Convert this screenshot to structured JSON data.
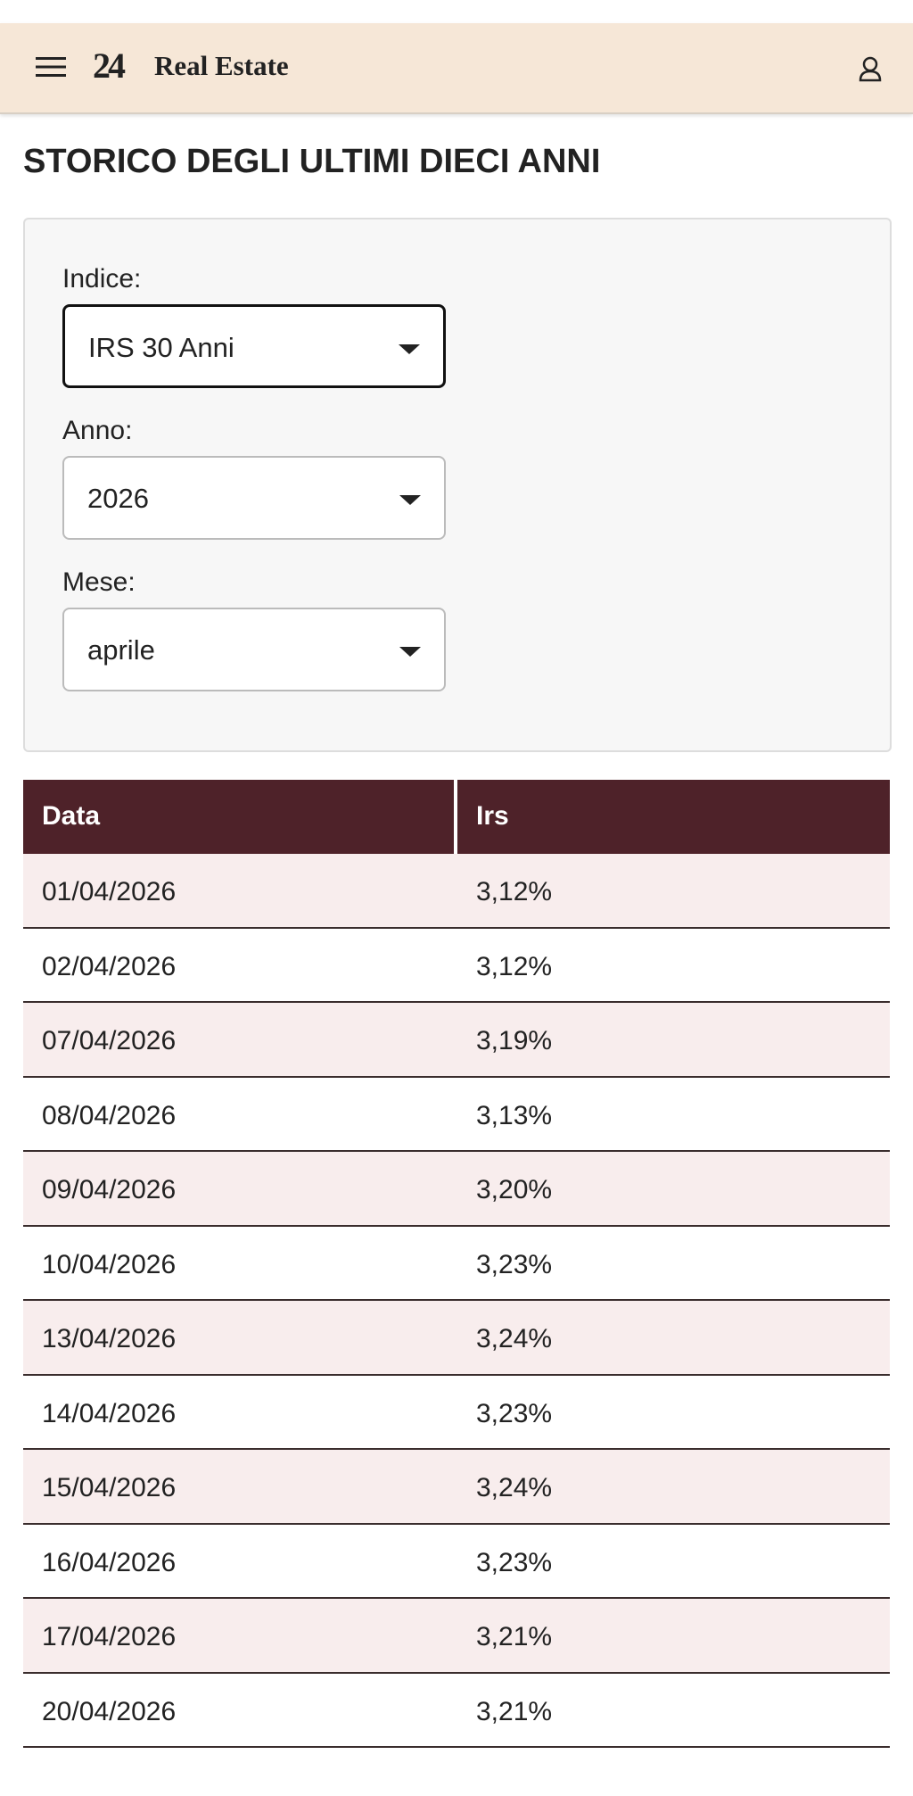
{
  "header": {
    "logo": "24",
    "brand": "Real Estate"
  },
  "page_title": "STORICO DEGLI ULTIMI DIECI ANNI",
  "filters": [
    {
      "label": "Indice:",
      "value": "IRS 30 Anni"
    },
    {
      "label": "Anno:",
      "value": "2026"
    },
    {
      "label": "Mese:",
      "value": "aprile"
    }
  ],
  "table": {
    "columns": [
      "Data",
      "Irs"
    ],
    "rows": [
      [
        "01/04/2026",
        "3,12%"
      ],
      [
        "02/04/2026",
        "3,12%"
      ],
      [
        "07/04/2026",
        "3,19%"
      ],
      [
        "08/04/2026",
        "3,13%"
      ],
      [
        "09/04/2026",
        "3,20%"
      ],
      [
        "10/04/2026",
        "3,23%"
      ],
      [
        "13/04/2026",
        "3,24%"
      ],
      [
        "14/04/2026",
        "3,23%"
      ],
      [
        "15/04/2026",
        "3,24%"
      ],
      [
        "16/04/2026",
        "3,23%"
      ],
      [
        "17/04/2026",
        "3,21%"
      ],
      [
        "20/04/2026",
        "3,21%"
      ]
    ]
  }
}
